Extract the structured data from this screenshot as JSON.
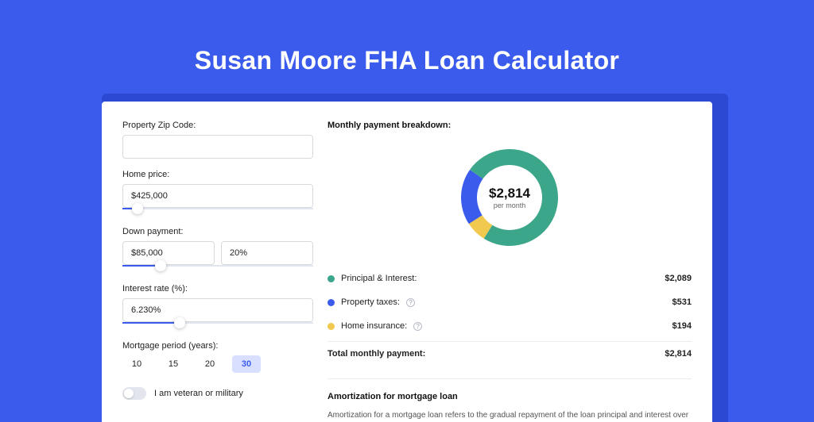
{
  "page": {
    "title": "Susan Moore FHA Loan Calculator",
    "bg_color": "#3b5bec",
    "accent_color": "#3b5bec"
  },
  "form": {
    "zip": {
      "label": "Property Zip Code:",
      "value": ""
    },
    "home_price": {
      "label": "Home price:",
      "value": "$425,000",
      "slider_pct": 8
    },
    "down_payment": {
      "label": "Down payment:",
      "value": "$85,000",
      "pct_value": "20%",
      "slider_pct": 20
    },
    "interest_rate": {
      "label": "Interest rate (%):",
      "value": "6.230%",
      "slider_pct": 30
    },
    "period": {
      "label": "Mortgage period (years):",
      "options": [
        "10",
        "15",
        "20",
        "30"
      ],
      "selected": "30"
    },
    "veteran": {
      "label": "I am veteran or military",
      "checked": false
    }
  },
  "breakdown": {
    "title": "Monthly payment breakdown:",
    "donut": {
      "center_amount": "$2,814",
      "center_sub": "per month",
      "slices": [
        {
          "key": "principal_interest",
          "value": 2089,
          "color": "#3ba68a",
          "start_deg": 305,
          "sweep_deg": 267
        },
        {
          "key": "property_taxes",
          "value": 531,
          "color": "#3b5bec",
          "start_deg": 237,
          "sweep_deg": 68
        },
        {
          "key": "home_insurance",
          "value": 194,
          "color": "#f0c94e",
          "start_deg": 212,
          "sweep_deg": 25
        }
      ],
      "thickness": 20,
      "radius": 61,
      "bg": "#ffffff"
    },
    "rows": [
      {
        "label": "Principal & Interest:",
        "value": "$2,089",
        "color": "#3ba68a",
        "info": false
      },
      {
        "label": "Property taxes:",
        "value": "$531",
        "color": "#3b5bec",
        "info": true
      },
      {
        "label": "Home insurance:",
        "value": "$194",
        "color": "#f0c94e",
        "info": true
      }
    ],
    "total": {
      "label": "Total monthly payment:",
      "value": "$2,814"
    }
  },
  "amortization": {
    "title": "Amortization for mortgage loan",
    "text": "Amortization for a mortgage loan refers to the gradual repayment of the loan principal and interest over a specified"
  }
}
